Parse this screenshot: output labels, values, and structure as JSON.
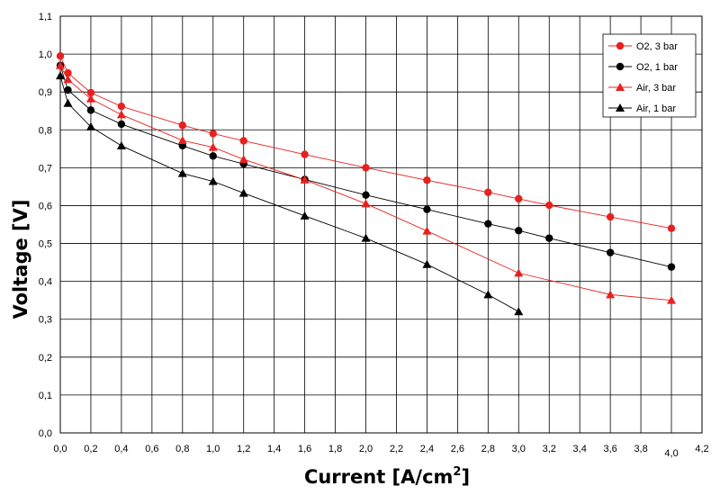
{
  "chart_data": {
    "type": "line",
    "xlabel": "Current [A/cm",
    "xlabel_sup": "2",
    "xlabel_close": "]",
    "ylabel": "Voltage [V]",
    "xlim": [
      0,
      4.2
    ],
    "ylim": [
      0,
      1.1
    ],
    "grid": true,
    "legend_position": "top-right",
    "x_ticks": [
      "0,0",
      "0,2",
      "0,4",
      "0,6",
      "0,8",
      "1,0",
      "1,2",
      "1,4",
      "1,6",
      "1,8",
      "2,0",
      "2,2",
      "2,4",
      "2,6",
      "2,8",
      "3,0",
      "3,2",
      "3,4",
      "3,6",
      "3,8",
      "4,0",
      "4,2"
    ],
    "x_tick_highlight": {
      "label": "4,0",
      "color": "#e8201f"
    },
    "y_ticks": [
      "0,0",
      "0,1",
      "0,2",
      "0,3",
      "0,4",
      "0,5",
      "0,6",
      "0,7",
      "0,8",
      "0,9",
      "1,0",
      "1,1"
    ],
    "series": [
      {
        "name": "O2, 3 bar",
        "color": "#e8201f",
        "marker": "circle",
        "x": [
          0,
          0.05,
          0.2,
          0.4,
          0.8,
          1.0,
          1.2,
          1.6,
          2.0,
          2.4,
          2.8,
          3.0,
          3.2,
          3.6,
          4.0
        ],
        "y": [
          0.995,
          0.95,
          0.898,
          0.862,
          0.812,
          0.79,
          0.771,
          0.735,
          0.7,
          0.667,
          0.635,
          0.618,
          0.601,
          0.57,
          0.54
        ]
      },
      {
        "name": "O2, 1 bar",
        "color": "#000000",
        "marker": "circle",
        "x": [
          0,
          0.05,
          0.2,
          0.4,
          0.8,
          1.0,
          1.2,
          1.6,
          2.0,
          2.4,
          2.8,
          3.0,
          3.2,
          3.6,
          4.0
        ],
        "y": [
          0.97,
          0.905,
          0.852,
          0.815,
          0.758,
          0.731,
          0.71,
          0.669,
          0.628,
          0.59,
          0.552,
          0.534,
          0.514,
          0.476,
          0.438
        ]
      },
      {
        "name": "Air, 3 bar",
        "color": "#e8201f",
        "marker": "triangle",
        "x": [
          0,
          0.05,
          0.2,
          0.4,
          0.8,
          1.0,
          1.2,
          1.6,
          2.0,
          2.4,
          3.0,
          3.6,
          4.0
        ],
        "y": [
          0.97,
          0.933,
          0.882,
          0.84,
          0.772,
          0.754,
          0.722,
          0.668,
          0.605,
          0.533,
          0.422,
          0.365,
          0.35
        ]
      },
      {
        "name": "Air, 1 bar",
        "color": "#000000",
        "marker": "triangle",
        "x": [
          0,
          0.05,
          0.2,
          0.4,
          0.8,
          1.0,
          1.2,
          1.6,
          2.0,
          2.4,
          2.8,
          3.0
        ],
        "y": [
          0.943,
          0.87,
          0.808,
          0.758,
          0.685,
          0.664,
          0.633,
          0.573,
          0.514,
          0.445,
          0.365,
          0.32
        ]
      }
    ]
  }
}
